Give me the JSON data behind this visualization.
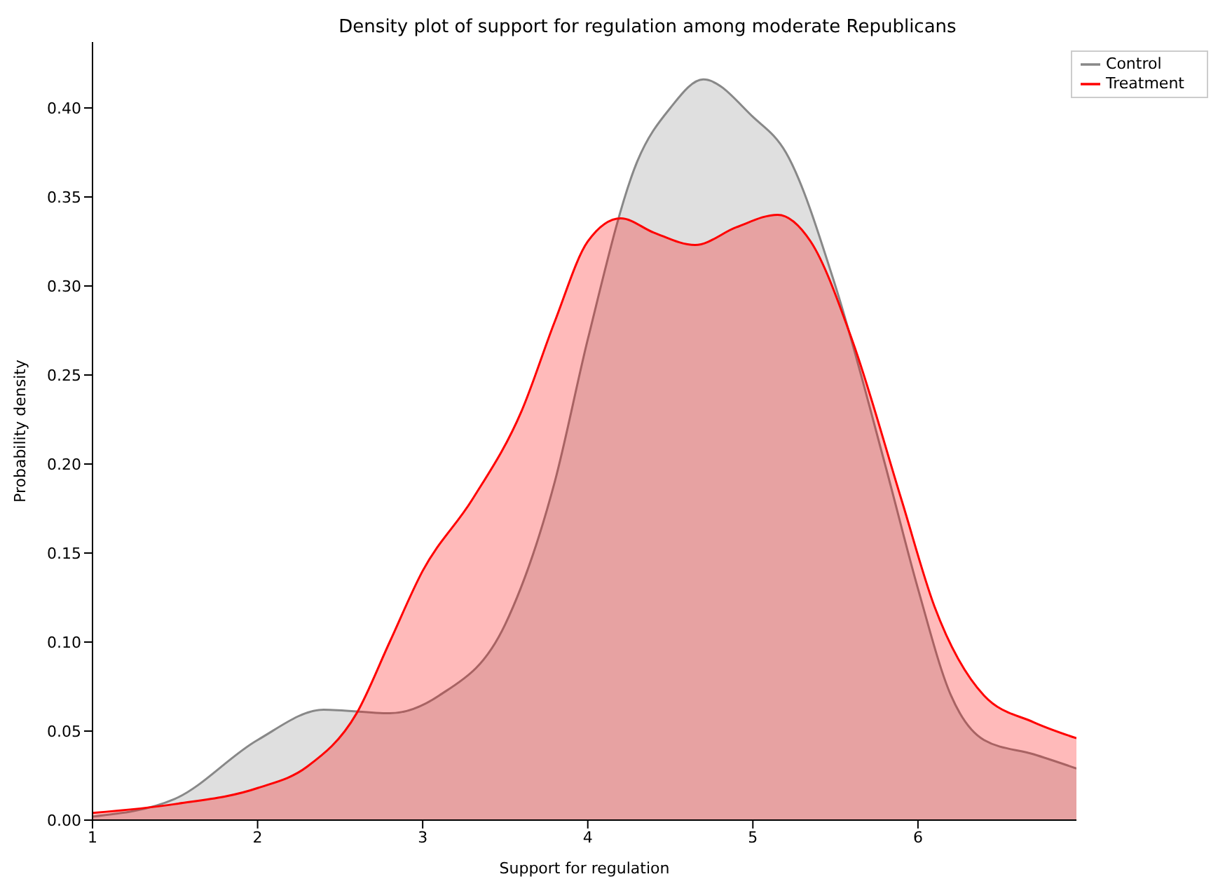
{
  "chart_data": {
    "type": "area",
    "title": "Density plot of support for regulation among moderate Republicans",
    "xlabel": "Support for regulation",
    "ylabel": "Probability density",
    "xlim": [
      1,
      6.96
    ],
    "xticks": [
      1,
      2,
      3,
      4,
      5,
      6
    ],
    "ylim": [
      0,
      0.437
    ],
    "yticks": [
      {
        "value": 0,
        "label": "0.00"
      },
      0.05,
      {
        "value": 0.1,
        "label": "0.10"
      },
      0.15,
      {
        "value": 0.2,
        "label": "0.20"
      },
      0.25,
      {
        "value": 0.3,
        "label": "0.30"
      },
      0.35,
      {
        "value": 0.4,
        "label": "0.40"
      }
    ],
    "grid": false,
    "legend": "top right",
    "line_style": "solid",
    "series": [
      {
        "name": "Control",
        "color": "#888888",
        "x": [
          1,
          1.5,
          2,
          2.4,
          2.8,
          3.1,
          3.5,
          3.8,
          4.0,
          4.3,
          4.5,
          4.7,
          5.0,
          5.2,
          5.5,
          5.8,
          6.0,
          6.2,
          6.4,
          6.7,
          6.96
        ],
        "values": [
          0.002,
          0.012,
          0.045,
          0.062,
          0.06,
          0.07,
          0.11,
          0.19,
          0.27,
          0.37,
          0.4,
          0.416,
          0.395,
          0.375,
          0.3,
          0.2,
          0.13,
          0.07,
          0.045,
          0.037,
          0.029
        ]
      },
      {
        "name": "Treatment",
        "color": "#ff0000",
        "x": [
          1,
          1.5,
          2,
          2.3,
          2.6,
          2.8,
          3.0,
          3.3,
          3.6,
          3.8,
          4.0,
          4.2,
          4.4,
          4.65,
          4.9,
          5.15,
          5.35,
          5.6,
          5.9,
          6.1,
          6.4,
          6.7,
          6.96
        ],
        "values": [
          0.004,
          0.009,
          0.018,
          0.03,
          0.06,
          0.1,
          0.14,
          0.18,
          0.23,
          0.28,
          0.325,
          0.338,
          0.33,
          0.323,
          0.333,
          0.34,
          0.325,
          0.27,
          0.18,
          0.12,
          0.07,
          0.055,
          0.046
        ]
      }
    ]
  }
}
